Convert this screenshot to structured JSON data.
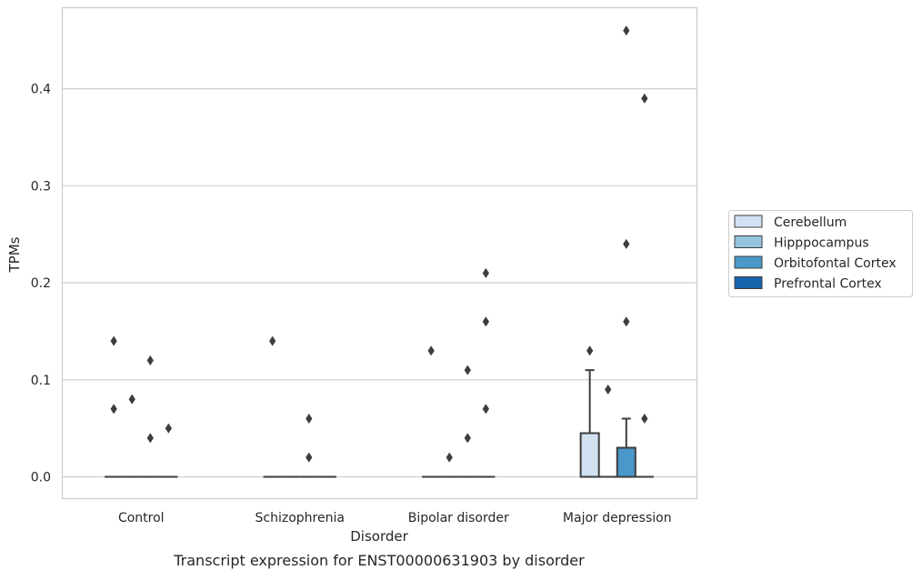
{
  "chart_data": {
    "type": "box",
    "title": "",
    "caption": "Transcript expression for ENST00000631903 by disorder",
    "xlabel": "Disorder",
    "ylabel": "TPMs",
    "categories": [
      "Control",
      "Schizophrenia",
      "Bipolar disorder",
      "Major depression"
    ],
    "ylim": [
      -0.022,
      0.484
    ],
    "yticks": [
      0.0,
      0.1,
      0.2,
      0.3,
      0.4
    ],
    "ytick_labels": [
      "0.0",
      "0.1",
      "0.2",
      "0.3",
      "0.4"
    ],
    "grid": true,
    "legend_position": "right",
    "series": [
      {
        "name": "Cerebellum",
        "color": "#d0e1f2",
        "boxes": [
          {
            "q1": 0,
            "median": 0,
            "q3": 0,
            "whisker_low": 0,
            "whisker_high": 0,
            "outliers": [
              0.14,
              0.07
            ]
          },
          {
            "q1": 0,
            "median": 0,
            "q3": 0,
            "whisker_low": 0,
            "whisker_high": 0,
            "outliers": [
              0.14
            ]
          },
          {
            "q1": 0,
            "median": 0,
            "q3": 0,
            "whisker_low": 0,
            "whisker_high": 0,
            "outliers": [
              0.13
            ]
          },
          {
            "q1": 0,
            "median": 0,
            "q3": 0.045,
            "whisker_low": 0,
            "whisker_high": 0.11,
            "outliers": [
              0.13
            ]
          }
        ]
      },
      {
        "name": "Hipppocampus",
        "color": "#94c4df",
        "boxes": [
          {
            "q1": 0,
            "median": 0,
            "q3": 0,
            "whisker_low": 0,
            "whisker_high": 0,
            "outliers": [
              0.08
            ]
          },
          {
            "q1": 0,
            "median": 0,
            "q3": 0,
            "whisker_low": 0,
            "whisker_high": 0,
            "outliers": []
          },
          {
            "q1": 0,
            "median": 0,
            "q3": 0,
            "whisker_low": 0,
            "whisker_high": 0,
            "outliers": [
              0.02
            ]
          },
          {
            "q1": 0,
            "median": 0,
            "q3": 0,
            "whisker_low": 0,
            "whisker_high": 0,
            "outliers": [
              0.09
            ]
          }
        ]
      },
      {
        "name": "Orbitofontal Cortex",
        "color": "#4a98c9",
        "boxes": [
          {
            "q1": 0,
            "median": 0,
            "q3": 0,
            "whisker_low": 0,
            "whisker_high": 0,
            "outliers": [
              0.12,
              0.04
            ]
          },
          {
            "q1": 0,
            "median": 0,
            "q3": 0,
            "whisker_low": 0,
            "whisker_high": 0,
            "outliers": [
              0.06,
              0.02
            ]
          },
          {
            "q1": 0,
            "median": 0,
            "q3": 0,
            "whisker_low": 0,
            "whisker_high": 0,
            "outliers": [
              0.11,
              0.04
            ]
          },
          {
            "q1": 0,
            "median": 0,
            "q3": 0.03,
            "whisker_low": 0,
            "whisker_high": 0.06,
            "outliers": [
              0.46,
              0.24,
              0.16
            ]
          }
        ]
      },
      {
        "name": "Prefrontal Cortex",
        "color": "#1764ab",
        "boxes": [
          {
            "q1": 0,
            "median": 0,
            "q3": 0,
            "whisker_low": 0,
            "whisker_high": 0,
            "outliers": [
              0.05
            ]
          },
          {
            "q1": 0,
            "median": 0,
            "q3": 0,
            "whisker_low": 0,
            "whisker_high": 0,
            "outliers": []
          },
          {
            "q1": 0,
            "median": 0,
            "q3": 0,
            "whisker_low": 0,
            "whisker_high": 0,
            "outliers": [
              0.21,
              0.16,
              0.07
            ]
          },
          {
            "q1": 0,
            "median": 0,
            "q3": 0,
            "whisker_low": 0,
            "whisker_high": 0,
            "outliers": [
              0.39,
              0.06
            ]
          }
        ]
      }
    ],
    "colors": {
      "grid": "#cccccc",
      "frame": "#cccccc",
      "edge": "#3d3d3d"
    }
  }
}
